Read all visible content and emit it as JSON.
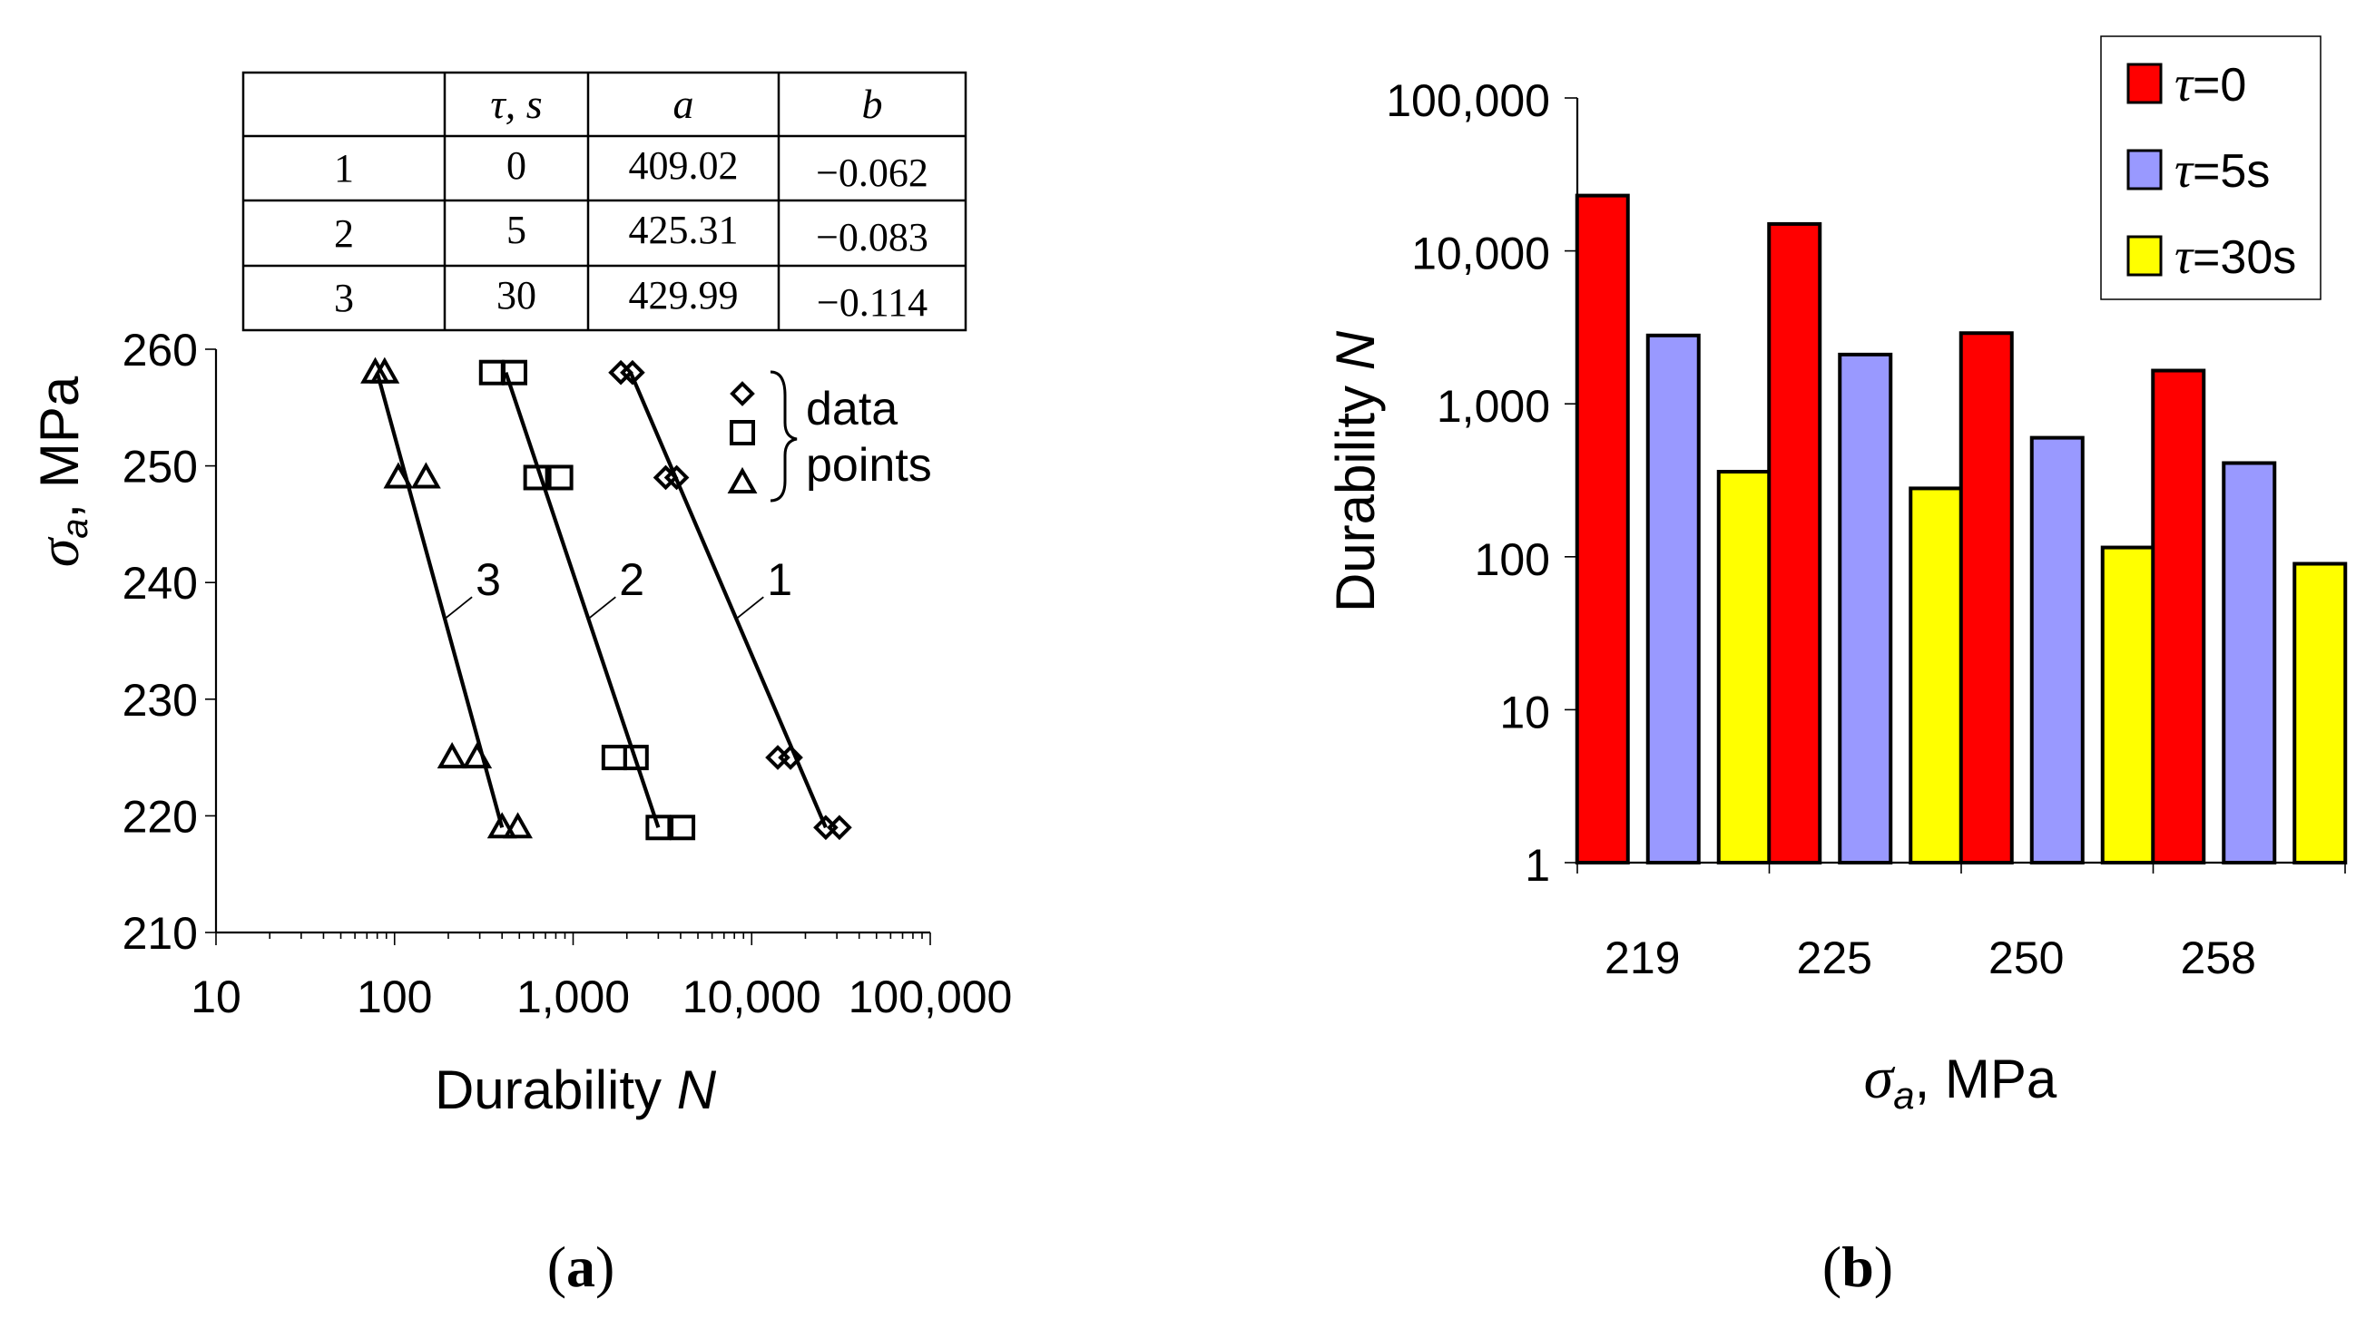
{
  "chart_data": [
    {
      "panel": "(a)",
      "panel_letter": "a",
      "type": "scatter",
      "xscale": "log",
      "xlabel": "Durability ",
      "xlabel_var": "N",
      "ylabel_sym": "σ",
      "ylabel_sub": "a",
      "ylabel_unit": ", MPa",
      "xlim": [
        10,
        100000
      ],
      "ylim": [
        210,
        260
      ],
      "x_ticks": [
        10,
        100,
        1000,
        10000,
        100000
      ],
      "x_tick_labels": [
        "10",
        "100",
        "1,000",
        "10,000",
        "100,000"
      ],
      "y_ticks": [
        210,
        220,
        230,
        240,
        250,
        260
      ],
      "y_tick_labels": [
        "210",
        "220",
        "230",
        "240",
        "250",
        "260"
      ],
      "series": [
        {
          "name": "1",
          "marker": "diamond",
          "fit": [
            [
              26000,
              219
            ],
            [
              2100,
              258
            ]
          ],
          "points": [
            [
              26000,
              219
            ],
            [
              31000,
              219
            ],
            [
              14000,
              225
            ],
            [
              16500,
              225
            ],
            [
              3300,
              249
            ],
            [
              3800,
              249
            ],
            [
              1850,
              258
            ],
            [
              2150,
              258
            ]
          ]
        },
        {
          "name": "2",
          "marker": "square",
          "fit": [
            [
              3000,
              219
            ],
            [
              420,
              258
            ]
          ],
          "points": [
            [
              3000,
              219
            ],
            [
              4100,
              219
            ],
            [
              1700,
              225
            ],
            [
              2250,
              225
            ],
            [
              620,
              249
            ],
            [
              850,
              249
            ],
            [
              350,
              258
            ],
            [
              470,
              258
            ]
          ]
        },
        {
          "name": "3",
          "marker": "triangle",
          "fit": [
            [
              400,
              219
            ],
            [
              80,
              258
            ]
          ],
          "points": [
            [
              400,
              219
            ],
            [
              490,
              219
            ],
            [
              210,
              225
            ],
            [
              290,
              225
            ],
            [
              105,
              249
            ],
            [
              150,
              249
            ],
            [
              78,
              258
            ],
            [
              88,
              258
            ]
          ]
        }
      ],
      "line_labels": [
        {
          "text": "1",
          "at": [
            17000,
            240
          ]
        },
        {
          "text": "2",
          "at": [
            2600,
            240
          ]
        },
        {
          "text": "3",
          "at": [
            370,
            240
          ]
        }
      ],
      "legend": {
        "line1": "data",
        "line2": "points"
      },
      "table": {
        "headers": [
          "",
          "τ,  s",
          "a",
          "b"
        ],
        "rows": [
          [
            "1",
            "0",
            "409.02",
            "−0.062"
          ],
          [
            "2",
            "5",
            "425.31",
            "−0.083"
          ],
          [
            "3",
            "30",
            "429.99",
            "−0.114"
          ]
        ]
      }
    },
    {
      "panel": "(b)",
      "panel_letter": "b",
      "type": "bar",
      "yscale": "log",
      "ylabel": "Durability ",
      "ylabel_var": "N",
      "xlabel_sym": "σ",
      "xlabel_sub": "a",
      "xlabel_unit": ", MPa",
      "ylim": [
        1,
        100000
      ],
      "y_ticks": [
        1,
        10,
        100,
        1000,
        10000,
        100000
      ],
      "y_tick_labels": [
        "1",
        "10",
        "100",
        "1,000",
        "10,000",
        "100,000"
      ],
      "categories": [
        "219",
        "225",
        "250",
        "258"
      ],
      "series": [
        {
          "name": "τ=0",
          "label_sym": "τ",
          "label_rest": "=0",
          "color": "#ff0000",
          "values": [
            23000,
            15000,
            2900,
            1650
          ]
        },
        {
          "name": "τ=5s",
          "label_sym": "τ",
          "label_rest": "=5s",
          "color": "#9999ff",
          "values": [
            2800,
            2100,
            600,
            410
          ]
        },
        {
          "name": "τ=30s",
          "label_sym": "τ",
          "label_rest": "=30s",
          "color": "#ffff00",
          "values": [
            360,
            280,
            115,
            90
          ]
        }
      ]
    }
  ]
}
